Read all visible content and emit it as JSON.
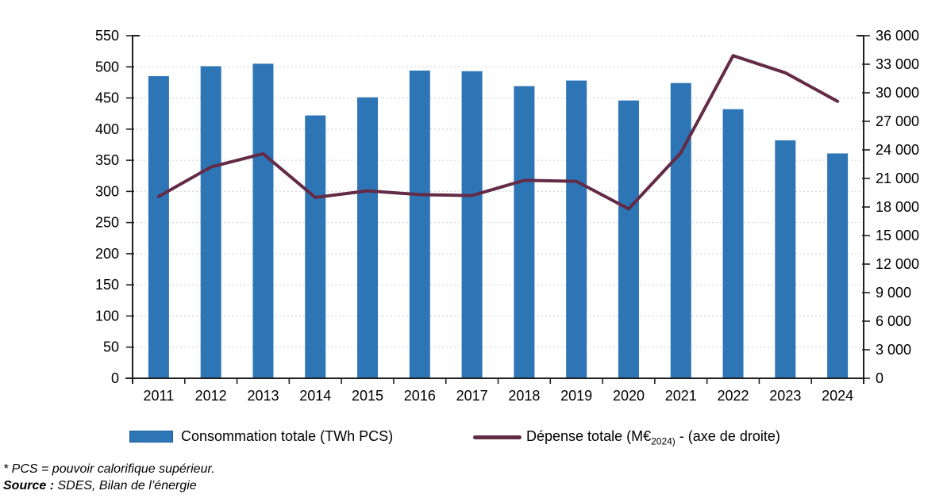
{
  "chart_data": {
    "type": "combo_bar_line",
    "title": "",
    "categories": [
      "2011",
      "2012",
      "2013",
      "2014",
      "2015",
      "2016",
      "2017",
      "2018",
      "2019",
      "2020",
      "2021",
      "2022",
      "2023",
      "2024"
    ],
    "series": [
      {
        "name": "Consommation totale (TWh PCS)",
        "chart_type": "bar",
        "axis": "left",
        "color": "#2e75b6",
        "values": [
          485,
          501,
          505,
          422,
          451,
          494,
          493,
          469,
          478,
          446,
          474,
          432,
          382,
          361
        ]
      },
      {
        "name": "Dépense totale (M€2024) - (axe de droite)",
        "chart_type": "line",
        "axis": "right",
        "color": "#632b45",
        "values": [
          19100,
          22200,
          23600,
          19000,
          19700,
          19300,
          19200,
          20800,
          20700,
          17800,
          23700,
          33900,
          32100,
          29100
        ]
      }
    ],
    "left_axis": {
      "min": 0,
      "max": 550,
      "step": 50
    },
    "right_axis": {
      "min": 0,
      "max": 36000,
      "step": 3000
    },
    "grid": true,
    "gridline_style": "dotted",
    "legend_position": "bottom",
    "colors": {
      "grid": "#d9d9d9",
      "axis": "#1f1f1f",
      "text": "#000000"
    }
  },
  "legend": {
    "bar_label": "Consommation totale (TWh PCS)",
    "line_label_prefix": "Dépense totale (M€",
    "line_label_subscript": "2024)",
    "line_label_suffix": " - (axe de droite)"
  },
  "footnotes": {
    "pcs_note": "* PCS = pouvoir calorifique supérieur.",
    "source_label": "Source :",
    "source_text": " SDES, Bilan de l’énergie"
  }
}
